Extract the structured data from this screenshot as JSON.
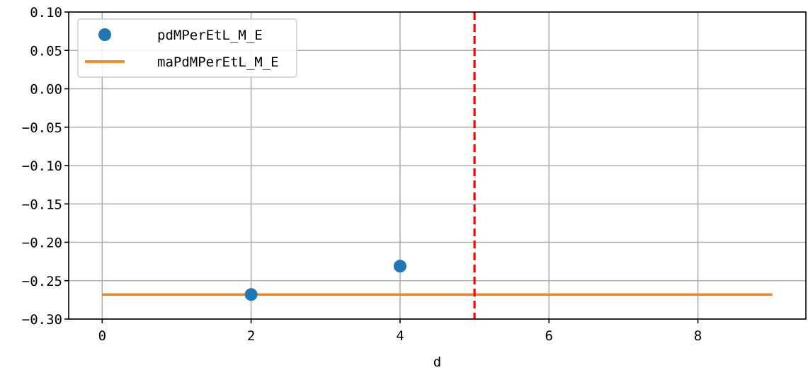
{
  "chart_data": {
    "type": "line",
    "title": "",
    "xlabel": "d",
    "ylabel": "",
    "xlim": [
      -0.45,
      9.45
    ],
    "ylim": [
      -0.3,
      0.1
    ],
    "xticks": [
      0,
      2,
      4,
      6,
      8
    ],
    "xtick_labels": [
      "0",
      "2",
      "4",
      "6",
      "8"
    ],
    "yticks": [
      0.1,
      0.05,
      0.0,
      -0.05,
      -0.1,
      -0.15,
      -0.2,
      -0.25,
      -0.3
    ],
    "ytick_labels": [
      "0.10",
      "0.05",
      "0.00",
      "−0.05",
      "−0.10",
      "−0.15",
      "−0.20",
      "−0.25",
      "−0.30"
    ],
    "grid": true,
    "legend_position": "top-left",
    "series": [
      {
        "name": "pdMPerEtL_M_E",
        "kind": "scatter",
        "color": "#1f77b4",
        "x": [
          2,
          4
        ],
        "y": [
          -0.268,
          -0.231
        ]
      },
      {
        "name": "maPdMPerEtL_M_E",
        "kind": "line",
        "color": "#ff7f0e",
        "x": [
          0,
          9
        ],
        "y": [
          -0.268,
          -0.268
        ]
      }
    ],
    "vlines": [
      {
        "x": 5,
        "color": "#ff0000",
        "style": "dashed"
      }
    ]
  }
}
